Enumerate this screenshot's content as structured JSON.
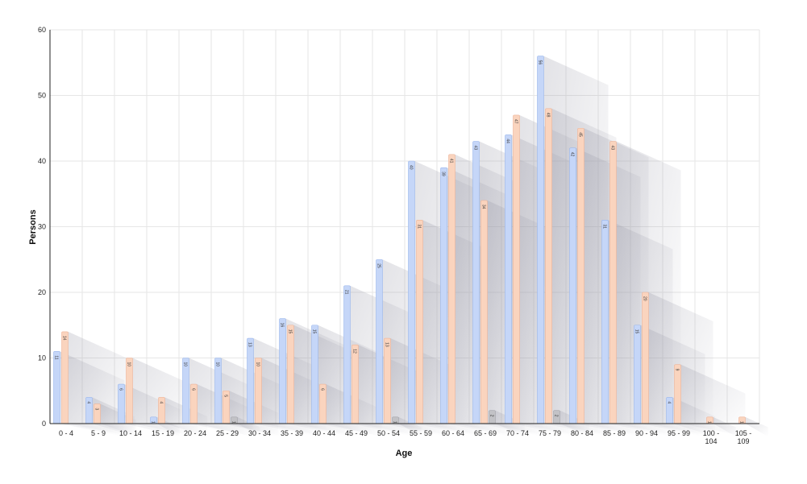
{
  "chart_data": {
    "type": "bar",
    "xlabel": "Age",
    "ylabel": "Persons",
    "ylim": [
      0,
      60
    ],
    "yticks": [
      "0",
      "10",
      "20",
      "30",
      "40",
      "50",
      "60"
    ],
    "grid": true,
    "legend": "none",
    "categories": [
      [
        "0 - 4"
      ],
      [
        "5 - 9"
      ],
      [
        "10 - 14"
      ],
      [
        "15 - 19"
      ],
      [
        "20 - 24"
      ],
      [
        "25 - 29"
      ],
      [
        "30 - 34"
      ],
      [
        "35 - 39"
      ],
      [
        "40 - 44"
      ],
      [
        "45 - 49"
      ],
      [
        "50 - 54"
      ],
      [
        "55 - 59"
      ],
      [
        "60 - 64"
      ],
      [
        "65 - 69"
      ],
      [
        "70 - 74"
      ],
      [
        "75 - 79"
      ],
      [
        "80 - 84"
      ],
      [
        "85 - 89"
      ],
      [
        "90 - 94"
      ],
      [
        "95 - 99"
      ],
      [
        "100 -",
        "104"
      ],
      [
        "105 -",
        "109"
      ]
    ],
    "series": [
      {
        "color": "#c5d6f8",
        "values": [
          11,
          4,
          6,
          1,
          10,
          10,
          13,
          16,
          15,
          21,
          25,
          40,
          39,
          43,
          44,
          56,
          42,
          31,
          15,
          4,
          0,
          0
        ],
        "labels": [
          "11",
          "4",
          "6",
          "1",
          "10",
          "10",
          "13",
          "16",
          "15",
          "21",
          "25",
          "40",
          "39",
          "43",
          "44",
          "56",
          "42",
          "31",
          "15",
          "4",
          "",
          ""
        ]
      },
      {
        "color": "#fad4be",
        "values": [
          14,
          3,
          10,
          4,
          6,
          5,
          10,
          15,
          6,
          12,
          13,
          31,
          41,
          34,
          47,
          48,
          45,
          43,
          20,
          9,
          1,
          1
        ],
        "labels": [
          "14",
          "3",
          "10",
          "4",
          "6",
          "5",
          "10",
          "15",
          "6",
          "12",
          "13",
          "31",
          "41",
          "34",
          "47",
          "48",
          "45",
          "43",
          "20",
          "9",
          "1",
          "1"
        ]
      },
      {
        "color": "#c2c2c6",
        "values": [
          0,
          0,
          0,
          0,
          0,
          1,
          0,
          0,
          0,
          0,
          1,
          0,
          0,
          2,
          0,
          2,
          0,
          0,
          0,
          0,
          0,
          0
        ],
        "labels": [
          "",
          "",
          "",
          "",
          "",
          "1",
          "",
          "",
          "",
          "",
          "1",
          "",
          "",
          "2",
          "",
          "2",
          "",
          "",
          "",
          "",
          "",
          ""
        ]
      }
    ]
  }
}
